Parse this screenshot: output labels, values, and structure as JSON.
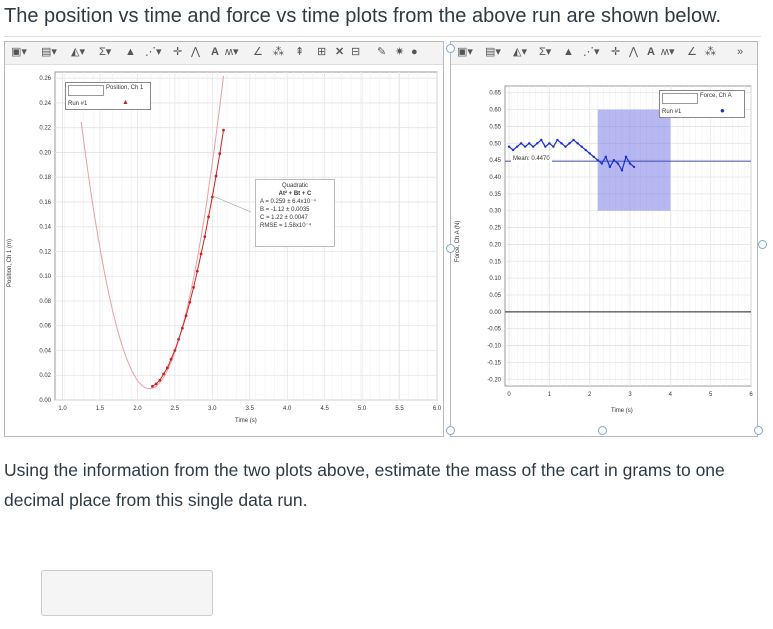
{
  "page": {
    "heading": "The position vs time and force vs time plots from the above run are shown below.",
    "question": "Using the information from the two plots above, estimate the mass of the cart in grams to one decimal place from this single data run.",
    "answer_placeholder": ""
  },
  "left_plot": {
    "legend_title": "Position, Ch 1",
    "legend_run": "Run #1",
    "ylabel": "Position, Ch 1 (m)",
    "xlabel": "Time (s)",
    "fit": {
      "title": "Quadratic",
      "equation": "At² + Bt + C",
      "a": "A = 0.259 ± 6.4x10⁻⁴",
      "b": "B = -1.12 ± 0.0035",
      "c": "C = 1.22 ± 0.0047",
      "rmse": "RMSE = 1.58x10⁻⁴"
    }
  },
  "right_plot": {
    "legend_title": "Force, Ch A",
    "legend_run": "Run #1",
    "ylabel": "Force, Ch A (N)",
    "xlabel": "Time (s)",
    "mean_label": "Mean: 0.4470"
  },
  "chart_data": [
    {
      "type": "scatter",
      "title": "",
      "xlabel": "Time (s)",
      "ylabel": "Position, Ch 1 (m)",
      "xlim": [
        0.9,
        6.0
      ],
      "ylim": [
        0.0,
        0.265
      ],
      "x_ticks": [
        "1.0",
        "1.5",
        "2.0",
        "2.5",
        "3.0",
        "3.5",
        "4.0",
        "4.5",
        "5.0",
        "5.5",
        "6.0"
      ],
      "y_ticks": [
        "0.00",
        "0.02",
        "0.04",
        "0.06",
        "0.08",
        "0.10",
        "0.12",
        "0.14",
        "0.16",
        "0.18",
        "0.20",
        "0.22",
        "0.24",
        "0.26"
      ],
      "series": [
        {
          "name": "Run #1",
          "color": "#cc2222",
          "x": [
            2.2,
            2.25,
            2.3,
            2.35,
            2.4,
            2.45,
            2.5,
            2.55,
            2.6,
            2.65,
            2.7,
            2.75,
            2.8,
            2.85,
            2.9,
            2.95,
            3.0,
            3.05,
            3.1,
            3.15
          ],
          "y": [
            0.011,
            0.013,
            0.016,
            0.021,
            0.026,
            0.033,
            0.04,
            0.049,
            0.058,
            0.068,
            0.079,
            0.091,
            0.104,
            0.118,
            0.132,
            0.148,
            0.164,
            0.181,
            0.199,
            0.218
          ]
        }
      ],
      "fit_line": {
        "type": "quadratic",
        "A": 0.259,
        "B": -1.12,
        "C": 1.22,
        "color": "#e8a0a0"
      },
      "grid": true
    },
    {
      "type": "scatter",
      "title": "",
      "xlabel": "Time (s)",
      "ylabel": "Force, Ch A (N)",
      "xlim": [
        -0.1,
        6.0
      ],
      "ylim": [
        -0.22,
        0.67
      ],
      "x_ticks": [
        "0",
        "1",
        "2",
        "3",
        "4",
        "5",
        "6"
      ],
      "y_ticks": [
        "-0.20",
        "-0.15",
        "-0.10",
        "-0.05",
        "0.00",
        "0.05",
        "0.10",
        "0.15",
        "0.20",
        "0.25",
        "0.30",
        "0.35",
        "0.40",
        "0.45",
        "0.50",
        "0.55",
        "0.60",
        "0.65"
      ],
      "series": [
        {
          "name": "Run #1",
          "color": "#1a2fcc",
          "x": [
            0.0,
            0.1,
            0.2,
            0.3,
            0.4,
            0.5,
            0.6,
            0.7,
            0.8,
            0.9,
            1.0,
            1.1,
            1.2,
            1.3,
            1.4,
            1.5,
            1.6,
            1.7,
            1.8,
            1.9,
            2.0,
            2.1,
            2.2,
            2.3,
            2.4,
            2.5,
            2.6,
            2.7,
            2.8,
            2.9,
            3.0,
            3.1
          ],
          "y": [
            0.49,
            0.48,
            0.49,
            0.5,
            0.49,
            0.5,
            0.49,
            0.5,
            0.51,
            0.49,
            0.5,
            0.49,
            0.51,
            0.5,
            0.49,
            0.5,
            0.51,
            0.5,
            0.49,
            0.48,
            0.47,
            0.46,
            0.45,
            0.44,
            0.46,
            0.43,
            0.45,
            0.44,
            0.42,
            0.46,
            0.44,
            0.43
          ]
        }
      ],
      "selection": {
        "x": [
          2.2,
          4.0
        ],
        "color": "#7b7be8"
      },
      "mean": 0.447,
      "grid": true
    }
  ],
  "colors": {
    "heading_text": "#2d3b45",
    "grid": "#e6e6e6",
    "selection": "#7b7be8",
    "position_points": "#cc2222",
    "force_points": "#1a2fcc"
  }
}
